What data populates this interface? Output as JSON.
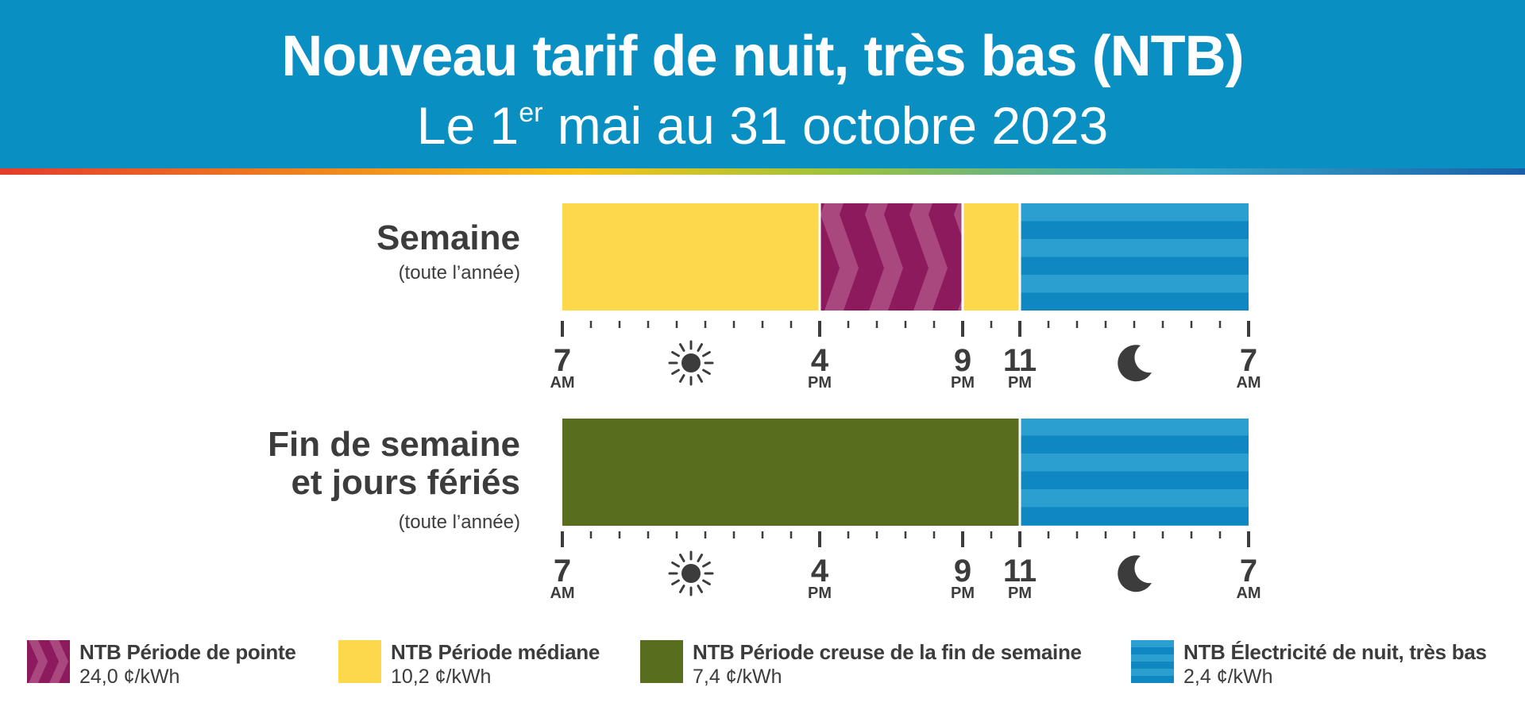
{
  "header": {
    "title": "Nouveau tarif de nuit, très bas (NTB)",
    "subtitle_pre": "Le 1",
    "subtitle_sup": "er",
    "subtitle_post": " mai au 31 octobre 2023"
  },
  "colors": {
    "header_bg": "#0a8fc3",
    "peak": "#8c1a5c",
    "mid": "#fdd84a",
    "weekend_offpeak": "#586e1e",
    "night": "#2a9fd0"
  },
  "timeline": {
    "start_hour": 7,
    "span_hours": 24,
    "tick_labels": [
      {
        "num": "7",
        "ampm": "AM",
        "hour": 7
      },
      {
        "num": "4",
        "ampm": "PM",
        "hour": 16
      },
      {
        "num": "9",
        "ampm": "PM",
        "hour": 21
      },
      {
        "num": "11",
        "ampm": "PM",
        "hour": 23
      },
      {
        "num": "7",
        "ampm": "AM",
        "hour": 31
      }
    ],
    "icons": [
      {
        "name": "sun-icon",
        "hour": 11.5
      },
      {
        "name": "moon-icon",
        "hour": 27
      }
    ]
  },
  "rows": [
    {
      "name": "weekday",
      "label_lines": [
        "Semaine"
      ],
      "sublabel": "(toute l’année)",
      "segments": [
        {
          "period": "mid",
          "start": 7,
          "end": 16
        },
        {
          "period": "peak",
          "start": 16,
          "end": 21
        },
        {
          "period": "mid",
          "start": 21,
          "end": 23
        },
        {
          "period": "night",
          "start": 23,
          "end": 31
        }
      ]
    },
    {
      "name": "weekend",
      "label_lines": [
        "Fin de semaine",
        "et jours fériés"
      ],
      "sublabel": "(toute l’année)",
      "segments": [
        {
          "period": "weekend_offpeak",
          "start": 7,
          "end": 23
        },
        {
          "period": "night",
          "start": 23,
          "end": 31
        }
      ]
    }
  ],
  "legend": [
    {
      "period": "peak",
      "name": "NTB Période de pointe",
      "price": "24,0 ¢/kWh"
    },
    {
      "period": "mid",
      "name": "NTB Période médiane",
      "price": "10,2 ¢/kWh"
    },
    {
      "period": "weekend_offpeak",
      "name": "NTB Période creuse de la fin de semaine",
      "price": "7,4 ¢/kWh"
    },
    {
      "period": "night",
      "name": "NTB Électricité de nuit, très bas",
      "price": "2,4 ¢/kWh"
    }
  ]
}
